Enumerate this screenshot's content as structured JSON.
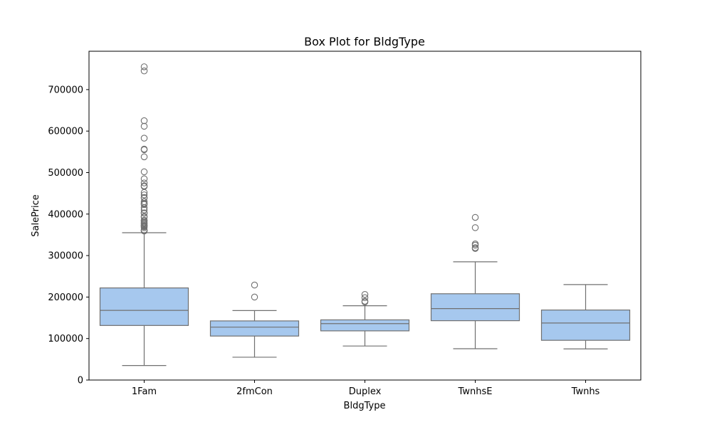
{
  "chart_data": {
    "type": "box",
    "title": "Box Plot for BldgType",
    "xlabel": "BldgType",
    "ylabel": "SalePrice",
    "ylim": [
      0,
      780000
    ],
    "yticks": [
      0,
      100000,
      200000,
      300000,
      400000,
      500000,
      600000,
      700000
    ],
    "ytick_labels": [
      "0",
      "100000",
      "200000",
      "300000",
      "400000",
      "500000",
      "600000",
      "700000"
    ],
    "categories": [
      "1Fam",
      "2fmCon",
      "Duplex",
      "TwnhsE",
      "Twnhs"
    ],
    "box_color": "#a6c8ee",
    "line_color": "#707070",
    "boxes": [
      {
        "category": "1Fam",
        "whisker_low": 34900,
        "q1": 131500,
        "median": 167900,
        "q3": 222000,
        "whisker_high": 355000,
        "outliers": [
          755000,
          745000,
          625000,
          611657,
          582933,
          556581,
          555000,
          538000,
          501837,
          485000,
          475000,
          468000,
          466500,
          451950,
          446261,
          440000,
          438780,
          430000,
          426000,
          424870,
          423000,
          415298,
          410000,
          402861,
          402000,
          394617,
          392500,
          385000,
          383970,
          381000,
          378500,
          377426,
          375000,
          372402,
          372500,
          370878,
          369900,
          367294,
          361919,
          360000,
          359100
        ]
      },
      {
        "category": "2fmCon",
        "whisker_low": 55000,
        "q1": 106000,
        "median": 127500,
        "q3": 142500,
        "whisker_high": 167500,
        "outliers": [
          228950,
          200000
        ]
      },
      {
        "category": "Duplex",
        "whisker_low": 82000,
        "q1": 118500,
        "median": 135980,
        "q3": 145000,
        "whisker_high": 179000,
        "outliers": [
          206300,
          198500,
          190000,
          188000
        ]
      },
      {
        "category": "TwnhsE",
        "whisker_low": 75500,
        "q1": 143000,
        "median": 172200,
        "q3": 207950,
        "whisker_high": 285000,
        "outliers": [
          392000,
          367294,
          328000,
          325000,
          319000,
          317000
        ]
      },
      {
        "category": "Twnhs",
        "whisker_low": 75000,
        "q1": 95750,
        "median": 137500,
        "q3": 168750,
        "whisker_high": 230000,
        "outliers": []
      }
    ]
  }
}
